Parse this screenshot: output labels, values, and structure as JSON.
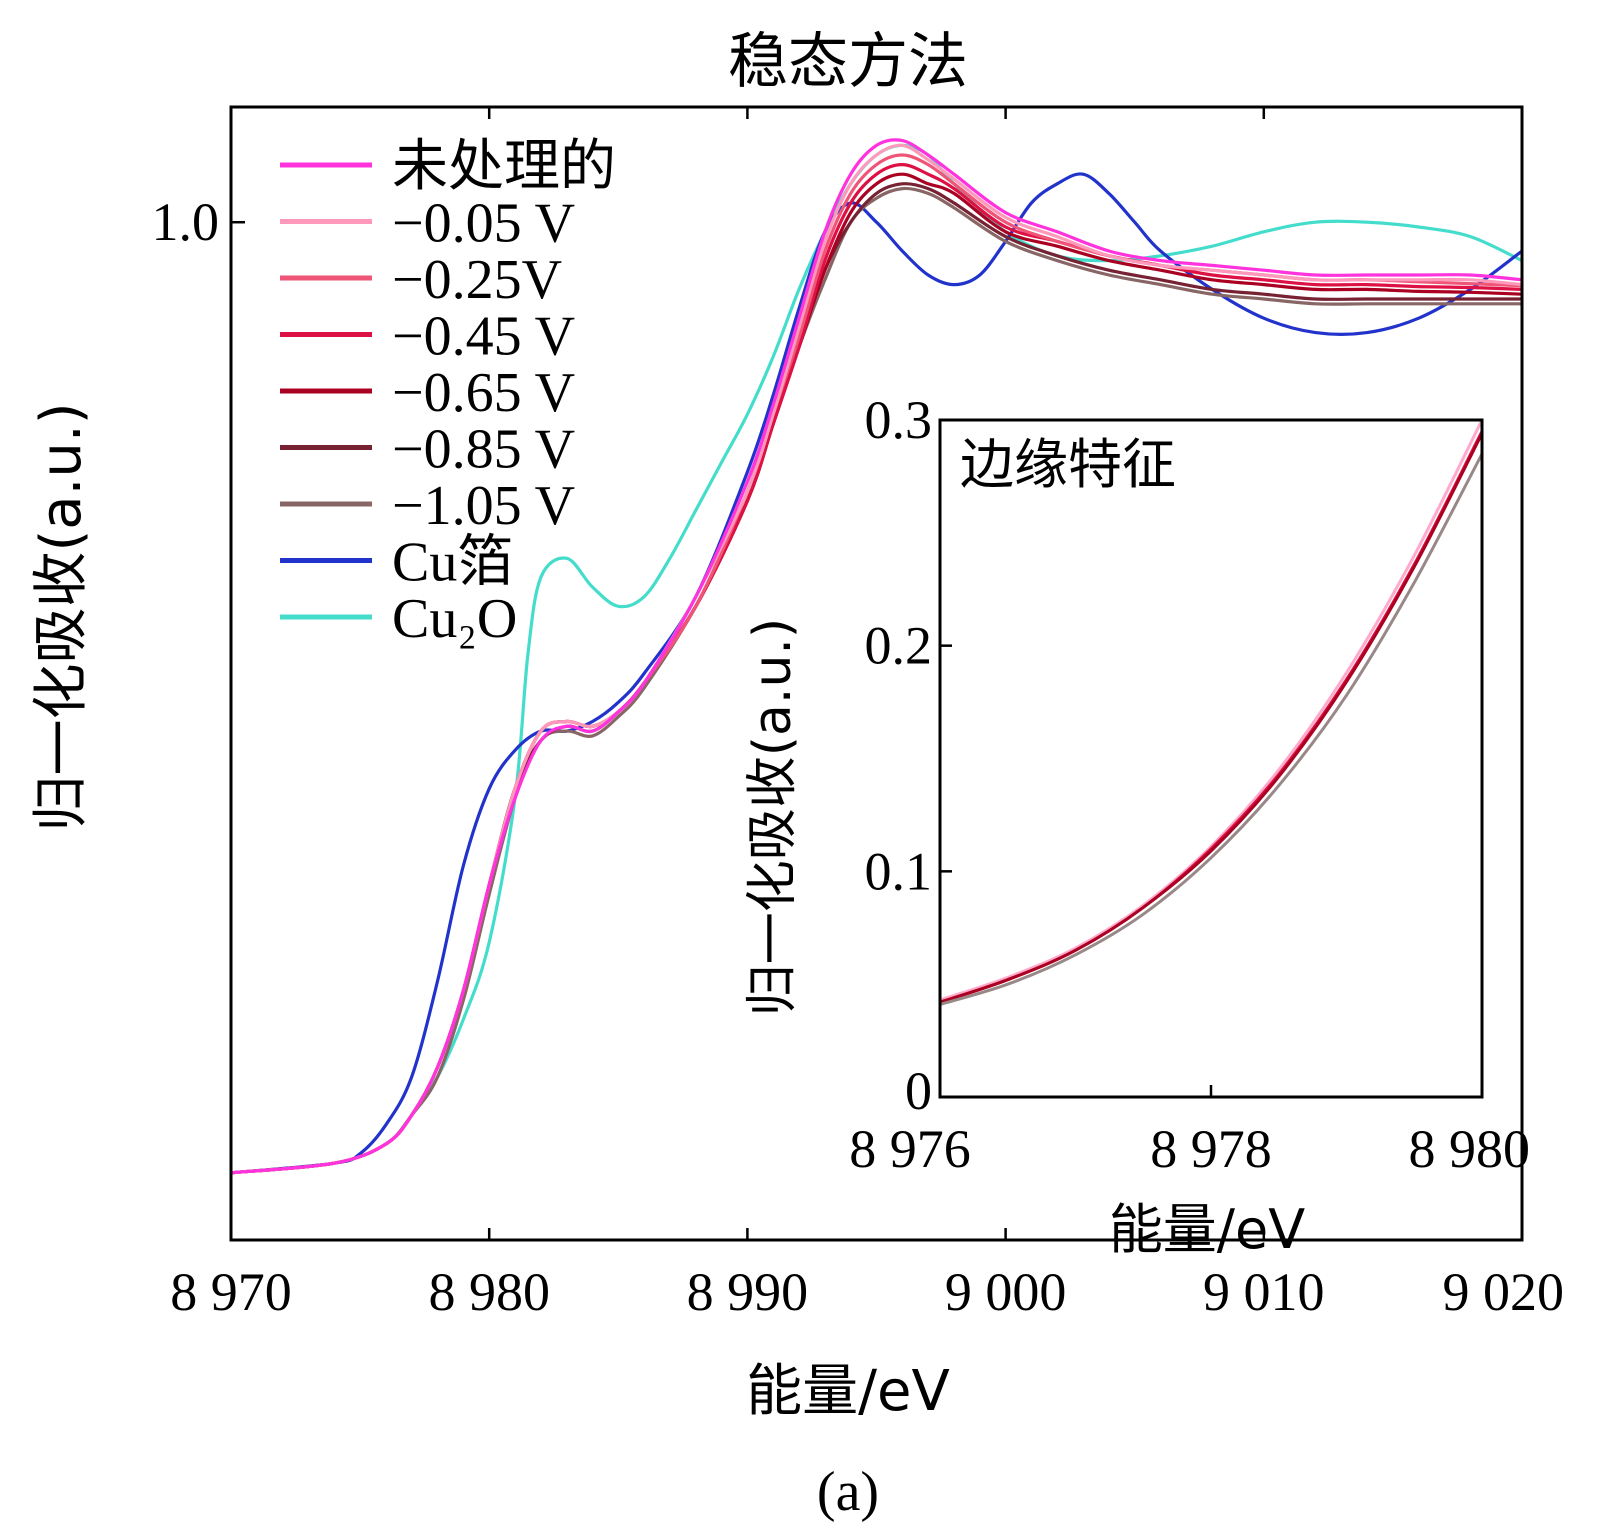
{
  "chart_data": [
    {
      "type": "line",
      "title": "稳态方法",
      "xlabel": "能量/eV",
      "ylabel": "归一化吸收(a.u.)",
      "caption": "(a)",
      "xlim": [
        8970,
        9020
      ],
      "ylim": [
        -0.06,
        1.12
      ],
      "xticks": [
        8970,
        8980,
        8990,
        9000,
        9010,
        9020
      ],
      "xtick_labels": [
        "8 970",
        "8 980",
        "8 990",
        "9 000",
        "9 010",
        "9 020"
      ],
      "yticks": [
        1.0
      ],
      "ytick_labels": [
        "1.0"
      ],
      "legend_position": "top-left",
      "series": [
        {
          "name": "未处理的",
          "color": "#ff33dd",
          "x": [
            8970,
            8974,
            8976,
            8977,
            8978,
            8979,
            8980,
            8981,
            8982,
            8983,
            8984,
            8985,
            8986,
            8988,
            8990,
            8991,
            8992,
            8993,
            8994,
            8995,
            8996,
            8997,
            8998,
            9000,
            9002,
            9004,
            9006,
            9008,
            9010,
            9012,
            9014,
            9016,
            9018,
            9020
          ],
          "y": [
            0.01,
            0.02,
            0.04,
            0.07,
            0.12,
            0.2,
            0.31,
            0.4,
            0.46,
            0.475,
            0.47,
            0.49,
            0.52,
            0.61,
            0.73,
            0.81,
            0.9,
            0.99,
            1.05,
            1.08,
            1.085,
            1.07,
            1.05,
            1.01,
            0.99,
            0.97,
            0.96,
            0.955,
            0.95,
            0.945,
            0.945,
            0.945,
            0.945,
            0.94
          ]
        },
        {
          "name": "−0.05 V",
          "color": "#ff99bb",
          "x": [
            8970,
            8974,
            8976,
            8977,
            8978,
            8979,
            8980,
            8981,
            8982,
            8983,
            8984,
            8985,
            8986,
            8988,
            8990,
            8991,
            8992,
            8993,
            8994,
            8995,
            8996,
            8997,
            8998,
            9000,
            9002,
            9004,
            9006,
            9008,
            9010,
            9012,
            9014,
            9016,
            9018,
            9020
          ],
          "y": [
            0.01,
            0.02,
            0.04,
            0.07,
            0.12,
            0.2,
            0.31,
            0.41,
            0.47,
            0.48,
            0.475,
            0.49,
            0.52,
            0.61,
            0.72,
            0.8,
            0.89,
            0.98,
            1.04,
            1.07,
            1.08,
            1.065,
            1.045,
            1.005,
            0.985,
            0.965,
            0.955,
            0.95,
            0.945,
            0.94,
            0.94,
            0.94,
            0.94,
            0.935
          ]
        },
        {
          "name": "−0.25V",
          "color": "#ee5577",
          "x": [
            8970,
            8974,
            8976,
            8977,
            8978,
            8979,
            8980,
            8981,
            8982,
            8983,
            8984,
            8985,
            8986,
            8988,
            8990,
            8991,
            8992,
            8993,
            8994,
            8995,
            8996,
            8997,
            8998,
            9000,
            9002,
            9004,
            9006,
            9008,
            9010,
            9012,
            9014,
            9016,
            9018,
            9020
          ],
          "y": [
            0.01,
            0.02,
            0.04,
            0.07,
            0.12,
            0.2,
            0.31,
            0.41,
            0.47,
            0.48,
            0.475,
            0.49,
            0.52,
            0.6,
            0.72,
            0.8,
            0.88,
            0.97,
            1.03,
            1.06,
            1.07,
            1.06,
            1.04,
            1.0,
            0.98,
            0.965,
            0.955,
            0.95,
            0.945,
            0.94,
            0.94,
            0.938,
            0.936,
            0.934
          ]
        },
        {
          "name": "−0.45 V",
          "color": "#dd1144",
          "x": [
            8970,
            8974,
            8976,
            8977,
            8978,
            8979,
            8980,
            8981,
            8982,
            8983,
            8984,
            8985,
            8986,
            8988,
            8990,
            8991,
            8992,
            8993,
            8994,
            8995,
            8996,
            8997,
            8998,
            9000,
            9002,
            9004,
            9006,
            9008,
            9010,
            9012,
            9014,
            9016,
            9018,
            9020
          ],
          "y": [
            0.01,
            0.02,
            0.04,
            0.07,
            0.12,
            0.2,
            0.31,
            0.41,
            0.47,
            0.48,
            0.475,
            0.49,
            0.52,
            0.6,
            0.71,
            0.79,
            0.87,
            0.96,
            1.02,
            1.05,
            1.06,
            1.05,
            1.035,
            0.995,
            0.98,
            0.965,
            0.955,
            0.945,
            0.94,
            0.935,
            0.935,
            0.933,
            0.932,
            0.93
          ]
        },
        {
          "name": "−0.65 V",
          "color": "#aa0022",
          "x": [
            8970,
            8974,
            8976,
            8977,
            8978,
            8979,
            8980,
            8981,
            8982,
            8983,
            8984,
            8985,
            8986,
            8988,
            8990,
            8991,
            8992,
            8993,
            8994,
            8995,
            8996,
            8997,
            8998,
            9000,
            9002,
            9004,
            9006,
            9008,
            9010,
            9012,
            9014,
            9016,
            9018,
            9020
          ],
          "y": [
            0.01,
            0.02,
            0.04,
            0.07,
            0.12,
            0.2,
            0.31,
            0.41,
            0.47,
            0.48,
            0.475,
            0.49,
            0.52,
            0.6,
            0.71,
            0.79,
            0.87,
            0.95,
            1.01,
            1.04,
            1.05,
            1.04,
            1.03,
            0.99,
            0.975,
            0.96,
            0.95,
            0.94,
            0.935,
            0.93,
            0.93,
            0.928,
            0.927,
            0.925
          ]
        },
        {
          "name": "−0.85 V",
          "color": "#772233",
          "x": [
            8970,
            8974,
            8976,
            8977,
            8978,
            8979,
            8980,
            8981,
            8982,
            8983,
            8984,
            8985,
            8986,
            8988,
            8990,
            8991,
            8992,
            8993,
            8994,
            8995,
            8996,
            8997,
            8998,
            9000,
            9002,
            9004,
            9006,
            9008,
            9010,
            9012,
            9014,
            9016,
            9018,
            9020
          ],
          "y": [
            0.01,
            0.02,
            0.04,
            0.07,
            0.12,
            0.2,
            0.31,
            0.41,
            0.46,
            0.475,
            0.47,
            0.49,
            0.52,
            0.6,
            0.71,
            0.79,
            0.87,
            0.95,
            1.0,
            1.03,
            1.04,
            1.035,
            1.02,
            0.985,
            0.965,
            0.95,
            0.94,
            0.93,
            0.925,
            0.92,
            0.92,
            0.92,
            0.92,
            0.92
          ]
        },
        {
          "name": "−1.05 V",
          "color": "#886666",
          "x": [
            8970,
            8974,
            8976,
            8977,
            8978,
            8979,
            8980,
            8981,
            8982,
            8983,
            8984,
            8985,
            8986,
            8988,
            8990,
            8991,
            8992,
            8993,
            8994,
            8995,
            8996,
            8997,
            8998,
            9000,
            9002,
            9004,
            9006,
            9008,
            9010,
            9012,
            9014,
            9016,
            9018,
            9020
          ],
          "y": [
            0.01,
            0.02,
            0.04,
            0.07,
            0.11,
            0.19,
            0.3,
            0.4,
            0.46,
            0.47,
            0.465,
            0.485,
            0.515,
            0.6,
            0.71,
            0.79,
            0.87,
            0.94,
            1.0,
            1.025,
            1.035,
            1.03,
            1.015,
            0.98,
            0.96,
            0.945,
            0.935,
            0.925,
            0.92,
            0.915,
            0.915,
            0.915,
            0.915,
            0.915
          ]
        },
        {
          "name": "Cu箔",
          "color": "#2233cc",
          "x": [
            8970,
            8974,
            8975,
            8976,
            8977,
            8978,
            8979,
            8980,
            8981,
            8982,
            8983,
            8984,
            8985,
            8986,
            8988,
            8990,
            8991,
            8992,
            8993,
            8994,
            8995,
            8996,
            8997,
            8998,
            8999,
            9000,
            9001,
            9002,
            9003,
            9004,
            9005,
            9006,
            9008,
            9010,
            9012,
            9014,
            9016,
            9018,
            9020
          ],
          "y": [
            0.01,
            0.02,
            0.03,
            0.06,
            0.11,
            0.21,
            0.33,
            0.41,
            0.45,
            0.47,
            0.47,
            0.48,
            0.5,
            0.53,
            0.61,
            0.74,
            0.82,
            0.91,
            0.99,
            1.02,
            1.0,
            0.97,
            0.945,
            0.935,
            0.945,
            0.98,
            1.02,
            1.04,
            1.05,
            1.03,
            1.0,
            0.97,
            0.93,
            0.9,
            0.885,
            0.885,
            0.9,
            0.93,
            0.97
          ]
        },
        {
          "name": "Cu₂O",
          "color": "#44ddcc",
          "x": [
            8970,
            8974,
            8976,
            8977,
            8978,
            8979,
            8980,
            8981,
            8981.5,
            8982,
            8983,
            8984,
            8985,
            8986,
            8987,
            8988,
            8989,
            8990,
            8991,
            8992,
            8993,
            8994,
            8995,
            8996,
            8997,
            8998,
            9000,
            9002,
            9004,
            9006,
            9008,
            9010,
            9012,
            9014,
            9016,
            9018,
            9020
          ],
          "y": [
            0.01,
            0.02,
            0.04,
            0.07,
            0.11,
            0.17,
            0.25,
            0.4,
            0.55,
            0.63,
            0.65,
            0.62,
            0.6,
            0.61,
            0.65,
            0.7,
            0.75,
            0.8,
            0.86,
            0.93,
            0.99,
            1.04,
            1.07,
            1.08,
            1.07,
            1.04,
            0.99,
            0.965,
            0.96,
            0.965,
            0.975,
            0.99,
            1.0,
            1.0,
            0.995,
            0.985,
            0.96
          ]
        }
      ]
    },
    {
      "type": "line",
      "title": "边缘特征",
      "xlabel": "能量/eV",
      "ylabel": "归一化吸收(a.u.)",
      "xlim": [
        8976,
        8980
      ],
      "ylim": [
        0,
        0.3
      ],
      "xticks": [
        8976,
        8978,
        8980
      ],
      "xtick_labels": [
        "8 976",
        "8 978",
        "8 980"
      ],
      "yticks": [
        0,
        0.1,
        0.2,
        0.3
      ],
      "ytick_labels": [
        "0",
        "0.1",
        "0.2",
        "0.3"
      ],
      "series": [
        {
          "color": "#ffaacc",
          "x": [
            8976,
            8976.5,
            8977,
            8977.5,
            8978,
            8978.5,
            8979,
            8979.5,
            8980
          ],
          "y": [
            0.043,
            0.053,
            0.066,
            0.085,
            0.111,
            0.145,
            0.188,
            0.24,
            0.3
          ]
        },
        {
          "color": "#dd1144",
          "x": [
            8976,
            8976.5,
            8977,
            8977.5,
            8978,
            8978.5,
            8979,
            8979.5,
            8980
          ],
          "y": [
            0.042,
            0.052,
            0.065,
            0.084,
            0.11,
            0.143,
            0.185,
            0.236,
            0.295
          ]
        },
        {
          "color": "#aa0022",
          "x": [
            8976,
            8976.5,
            8977,
            8977.5,
            8978,
            8978.5,
            8979,
            8979.5,
            8980
          ],
          "y": [
            0.042,
            0.052,
            0.065,
            0.084,
            0.109,
            0.142,
            0.184,
            0.235,
            0.294
          ]
        },
        {
          "color": "#998888",
          "x": [
            8976,
            8976.5,
            8977,
            8977.5,
            8978,
            8978.5,
            8979,
            8979.5,
            8980
          ],
          "y": [
            0.041,
            0.05,
            0.063,
            0.081,
            0.106,
            0.138,
            0.178,
            0.228,
            0.285
          ]
        }
      ]
    }
  ]
}
